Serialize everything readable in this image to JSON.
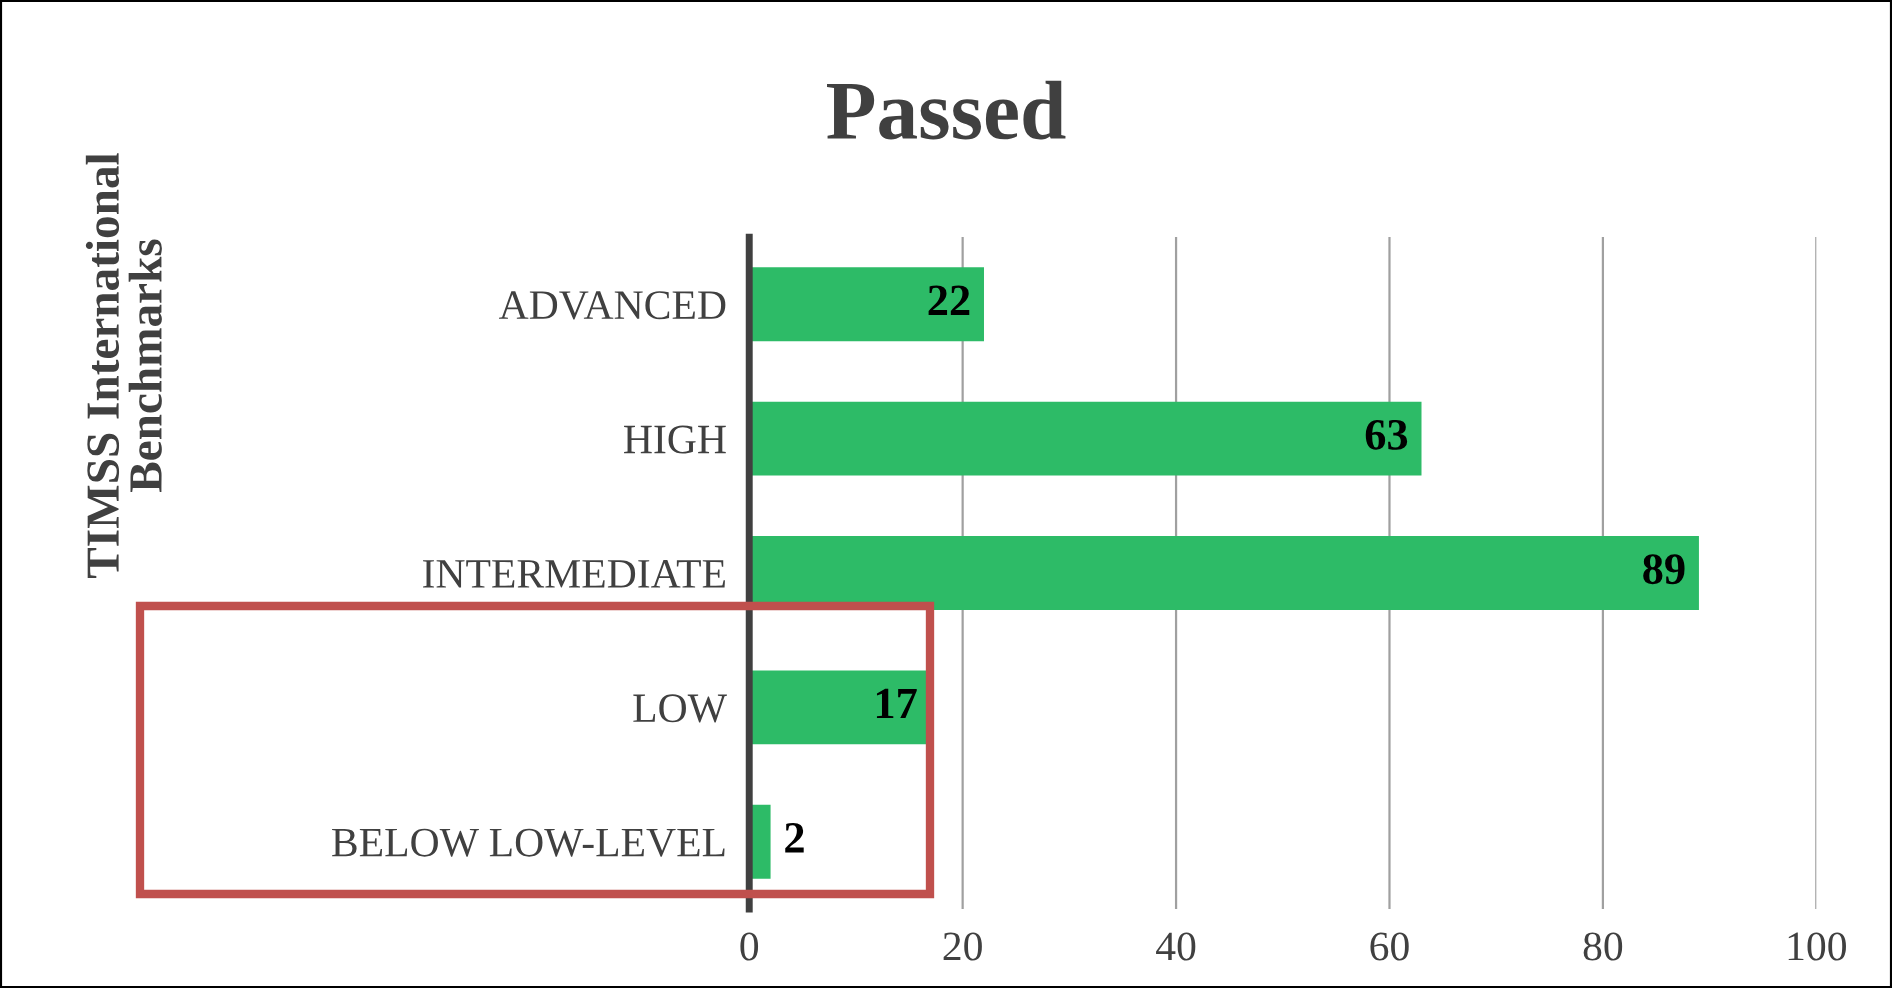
{
  "chart_data": {
    "type": "bar",
    "orientation": "horizontal",
    "title": "Passed",
    "ylabel": "TIMSS International\nBenchmarks",
    "categories": [
      "ADVANCED",
      "HIGH",
      "INTERMEDIATE",
      "LOW",
      "BELOW LOW-LEVEL"
    ],
    "values": [
      22,
      63,
      89,
      17,
      2
    ],
    "color": "#2dbb67",
    "xlim": [
      0,
      100
    ],
    "xticks": [
      0,
      20,
      40,
      60,
      80,
      100
    ],
    "grid": "x",
    "data_labels": true
  }
}
